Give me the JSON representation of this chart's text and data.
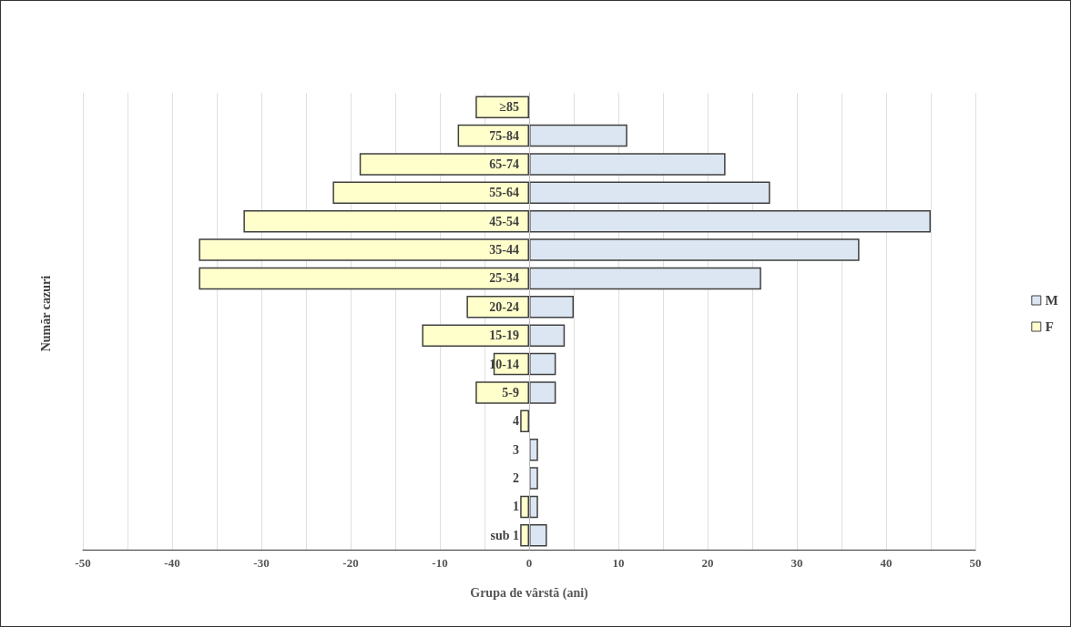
{
  "chart_data": {
    "type": "bar",
    "orientation": "horizontal",
    "xlabel": "Grupa de vârstă (ani)",
    "ylabel": "Număr cazuri",
    "categories": [
      "≥85",
      "75-84",
      "65-74",
      "55-64",
      "45-54",
      "35-44",
      "25-34",
      "20-24",
      "15-19",
      "10-14",
      "5-9",
      "4",
      "3",
      "2",
      "1",
      "sub 1"
    ],
    "series": [
      {
        "name": "M",
        "color": "#dce6f2",
        "values": [
          0,
          11,
          22,
          27,
          45,
          37,
          26,
          5,
          4,
          3,
          3,
          0,
          1,
          1,
          1,
          2
        ]
      },
      {
        "name": "F",
        "color": "#ffffcc",
        "values": [
          -6,
          -8,
          -19,
          -22,
          -32,
          -37,
          -37,
          -7,
          -12,
          -4,
          -6,
          -1,
          0,
          0,
          -1,
          -1
        ]
      }
    ],
    "xlim": [
      -50,
      50
    ],
    "xticks": [
      -50,
      {
        "value": -45,
        "label": null
      },
      -40,
      {
        "value": -35,
        "label": null
      },
      -30,
      {
        "value": -25,
        "label": null
      },
      -20,
      {
        "value": -15,
        "label": null
      },
      -10,
      {
        "value": -5,
        "label": null
      },
      0,
      {
        "value": 5,
        "label": null
      },
      10,
      {
        "value": 15,
        "label": null
      },
      20,
      {
        "value": 25,
        "label": null
      },
      30,
      {
        "value": 35,
        "label": null
      },
      40,
      {
        "value": 45,
        "label": null
      },
      50
    ],
    "grid": "x",
    "legend": "right",
    "stacked": true
  }
}
